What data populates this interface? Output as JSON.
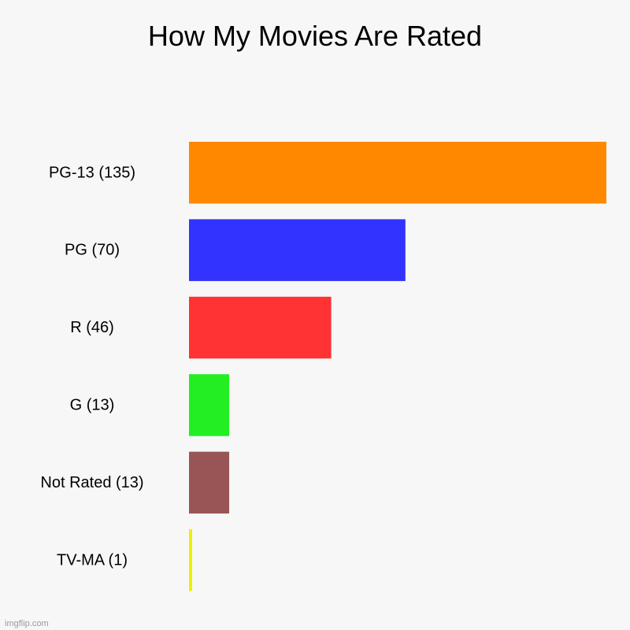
{
  "chart_data": {
    "type": "bar",
    "orientation": "horizontal",
    "title": "How My Movies Are Rated",
    "categories": [
      "PG-13 (135)",
      "PG (70)",
      "R (46)",
      "G (13)",
      "Not Rated (13)",
      "TV-MA (1)"
    ],
    "values": [
      135,
      70,
      46,
      13,
      13,
      1
    ],
    "colors": [
      "#ff8800",
      "#3333ff",
      "#ff3333",
      "#22ee22",
      "#995555",
      "#eeee00"
    ],
    "xlim": [
      0,
      135
    ],
    "grid": false,
    "legend": "none"
  },
  "watermark": "imgflip.com"
}
